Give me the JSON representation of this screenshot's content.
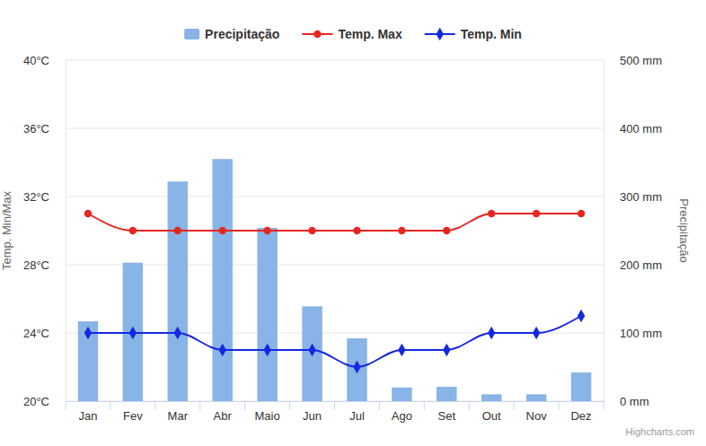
{
  "chart_data": {
    "type": "combo",
    "categories": [
      "Jan",
      "Fev",
      "Mar",
      "Abr",
      "Maio",
      "Jun",
      "Jul",
      "Ago",
      "Set",
      "Out",
      "Nov",
      "Dez"
    ],
    "series": [
      {
        "name": "Precipitação",
        "type": "bar",
        "axis": "y2",
        "color": "#88b4e7",
        "values": [
          117,
          203,
          322,
          355,
          254,
          139,
          92,
          20,
          21,
          10,
          10,
          42
        ]
      },
      {
        "name": "Temp. Max",
        "type": "line",
        "color": "#e6261f",
        "marker": "circle",
        "line_style": "solid",
        "values": [
          31,
          30,
          30,
          30,
          30,
          30,
          30,
          30,
          30,
          31,
          31,
          31
        ]
      },
      {
        "name": "Temp. Min",
        "type": "line",
        "color": "#1428e0",
        "marker": "diamond",
        "line_style": "solid",
        "values": [
          24,
          24,
          24,
          23,
          23,
          23,
          22,
          23,
          23,
          24,
          24,
          25
        ]
      }
    ],
    "ylim": [
      20,
      40
    ],
    "yticks": [
      {
        "value": 20,
        "label": "20°C"
      },
      {
        "value": 24,
        "label": "24°C"
      },
      {
        "value": 28,
        "label": "28°C"
      },
      {
        "value": 32,
        "label": "32°C"
      },
      {
        "value": 36,
        "label": "36°C"
      },
      {
        "value": 40,
        "label": "40°C"
      }
    ],
    "y2lim": [
      0,
      500
    ],
    "y2ticks": [
      {
        "value": 0,
        "label": "0 mm"
      },
      {
        "value": 100,
        "label": "100 mm"
      },
      {
        "value": 200,
        "label": "200 mm"
      },
      {
        "value": 300,
        "label": "300 mm"
      },
      {
        "value": 400,
        "label": "400 mm"
      },
      {
        "value": 500,
        "label": "500 mm"
      }
    ],
    "y_label": "Temp. Min/Max",
    "y2_label": "Precipitação",
    "grid": true,
    "legend": "top",
    "source": "Highcharts.com"
  }
}
